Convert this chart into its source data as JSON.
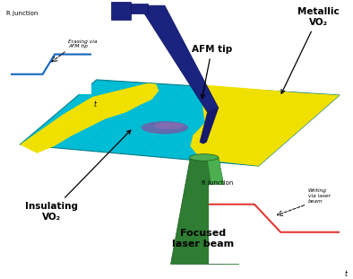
{
  "bg_color": "#ffffff",
  "plate_color_cyan": "#00bcd4",
  "plate_color_yellow": "#f0e000",
  "plate_edge_color": "#00838f",
  "afm_color": "#1a237e",
  "cone_dark": "#2e7d32",
  "cone_light": "#4caf50",
  "cone_highlight": "#66bb6a",
  "spot_color": "#7b3fa0",
  "inset_line_blue": "#1565c0",
  "inset_line_red": "#e53935",
  "label_afm": "AFM tip",
  "label_metallic": "Metallic\nVO₂",
  "label_insulating": "Insulating\nVO₂",
  "label_laser": "Focused\nlaser beam",
  "label_r_junction": "R junction",
  "label_t": "t",
  "label_erasing": "Erasing via\nAFM tip",
  "label_writing": "Writing\nvia laser\nbeam"
}
